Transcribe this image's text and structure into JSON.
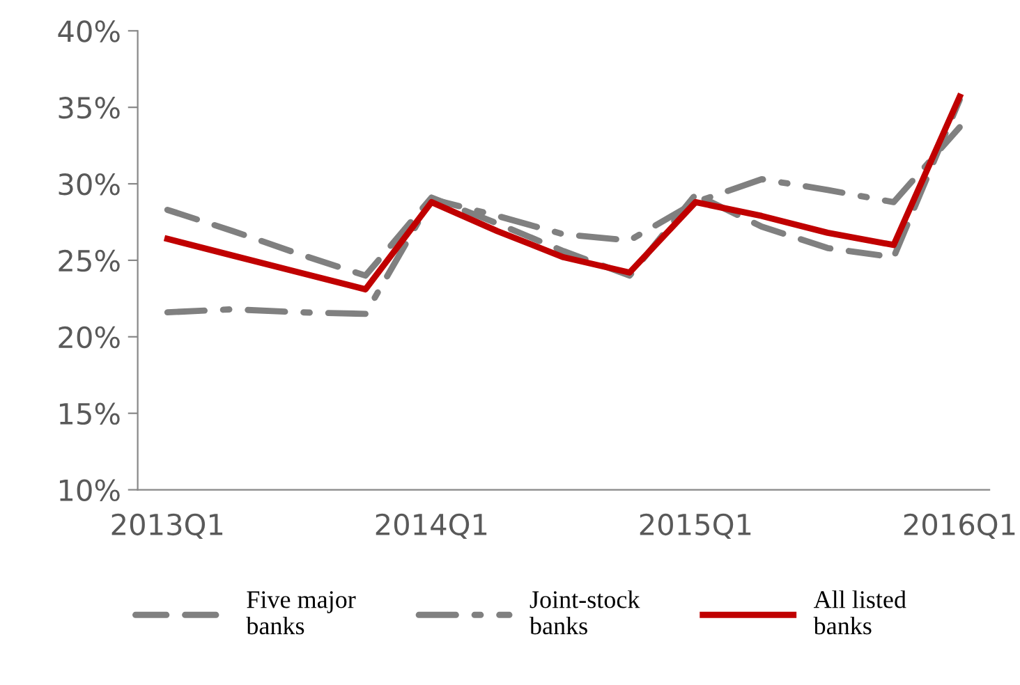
{
  "chart_data": {
    "type": "line",
    "categories": [
      "2013Q1",
      null,
      null,
      null,
      "2014Q1",
      null,
      null,
      null,
      "2015Q1",
      null,
      null,
      null,
      "2016Q1"
    ],
    "series": [
      {
        "name": "Five major\nbanks",
        "color": "#808080",
        "line_style": "dashed",
        "values": [
          28.3,
          26.9,
          25.4,
          24.0,
          29.1,
          27.4,
          25.6,
          24.0,
          29.3,
          27.2,
          25.8,
          25.2,
          35.5
        ]
      },
      {
        "name": "Joint-stock\nbanks",
        "color": "#808080",
        "line_style": "dashdot",
        "values": [
          21.6,
          21.8,
          21.6,
          21.5,
          29.0,
          27.9,
          26.7,
          26.3,
          28.8,
          30.3,
          29.6,
          28.8,
          33.7
        ]
      },
      {
        "name": "All listed\nbanks",
        "color": "#c00000",
        "line_style": "solid",
        "values": [
          26.4,
          25.3,
          24.2,
          23.1,
          28.8,
          26.9,
          25.2,
          24.2,
          28.8,
          27.9,
          26.8,
          26.0,
          35.7
        ]
      }
    ],
    "ylim": [
      10,
      40
    ],
    "yticks": [
      {
        "value": 10,
        "label": "10%"
      },
      {
        "value": 15,
        "label": "15%"
      },
      {
        "value": 20,
        "label": "20%"
      },
      {
        "value": 25,
        "label": "25%"
      },
      {
        "value": 30,
        "label": "30%"
      },
      {
        "value": 35,
        "label": "35%"
      },
      {
        "value": 40,
        "label": "40%"
      }
    ],
    "grid": false,
    "legend": "bottom",
    "marker": "none"
  }
}
